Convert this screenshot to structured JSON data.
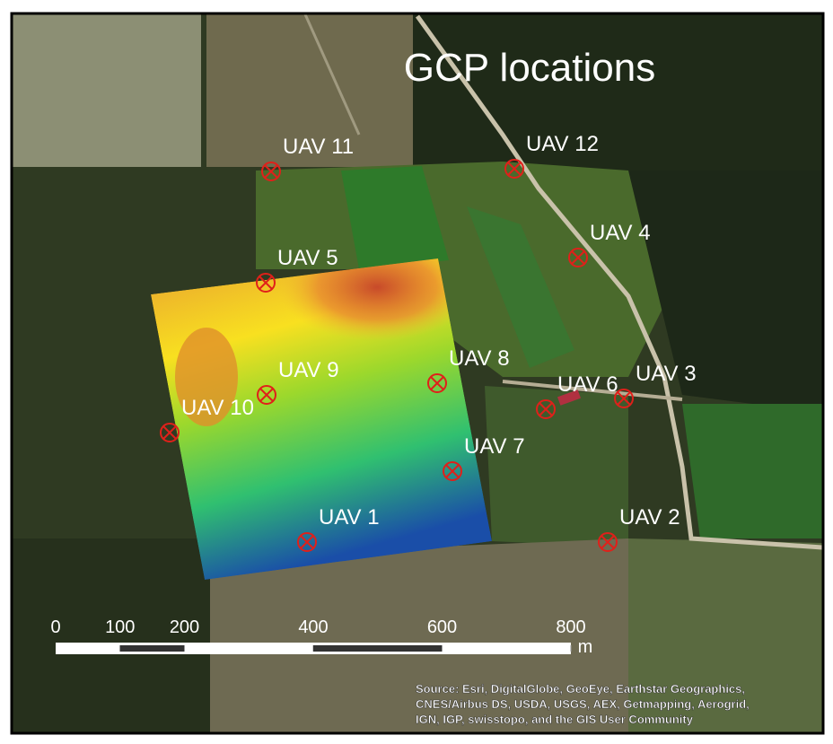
{
  "title": "GCP locations",
  "points": [
    {
      "label": "UAV 11"
    },
    {
      "label": "UAV 12"
    },
    {
      "label": "UAV 4"
    },
    {
      "label": "UAV 5"
    },
    {
      "label": "UAV 9"
    },
    {
      "label": "UAV 8"
    },
    {
      "label": "UAV 6"
    },
    {
      "label": "UAV 3"
    },
    {
      "label": "UAV 10"
    },
    {
      "label": "UAV 7"
    },
    {
      "label": "UAV 1"
    },
    {
      "label": "UAV 2"
    }
  ],
  "scale_bar": {
    "ticks": [
      0,
      100,
      200,
      400,
      600,
      800
    ],
    "unit": "m"
  },
  "attribution": [
    "Source: Esri, DigitalGlobe, GeoEye, Earthstar Geographics,",
    "CNES/Airbus DS, USDA, USGS, AEX, Getmapping, Aerogrid,",
    "IGN, IGP, swisstopo, and the GIS User Community"
  ]
}
